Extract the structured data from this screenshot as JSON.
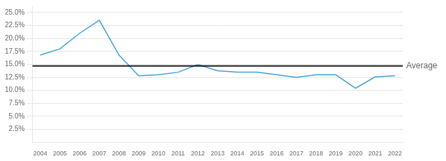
{
  "chart_data": {
    "type": "line",
    "x": [
      2004,
      2005,
      2006,
      2007,
      2008,
      2009,
      2010,
      2011,
      2012,
      2013,
      2014,
      2015,
      2016,
      2017,
      2018,
      2019,
      2020,
      2021,
      2022
    ],
    "series": [
      {
        "color": "#3AA0D8",
        "values": [
          0.168,
          0.18,
          0.21,
          0.235,
          0.168,
          0.128,
          0.13,
          0.135,
          0.15,
          0.138,
          0.135,
          0.135,
          0.13,
          0.125,
          0.13,
          0.13,
          0.104,
          0.126,
          0.128
        ]
      }
    ],
    "xlim": [
      2003.6,
      2022.4
    ],
    "xticks": [
      2004,
      2005,
      2006,
      2007,
      2008,
      2009,
      2010,
      2011,
      2012,
      2013,
      2014,
      2015,
      2016,
      2017,
      2018,
      2019,
      2020,
      2021,
      2022
    ],
    "ylim": [
      0.0,
      0.262
    ],
    "yticks": [
      {
        "value": 0.025,
        "label": "2.5%"
      },
      {
        "value": 0.05,
        "label": "5.0%"
      },
      {
        "value": 0.075,
        "label": "7.5%"
      },
      {
        "value": 0.1,
        "label": "10.0%"
      },
      {
        "value": 0.125,
        "label": "12.5%"
      },
      {
        "value": 0.15,
        "label": "15.0%"
      },
      {
        "value": 0.175,
        "label": "17.5%"
      },
      {
        "value": 0.2,
        "label": "20.0%"
      },
      {
        "value": 0.225,
        "label": "22.5%"
      },
      {
        "value": 0.25,
        "label": "25.0%"
      }
    ],
    "grid": "y",
    "annotations": [
      {
        "text": "Average",
        "y": 0.147,
        "color": "#000000"
      }
    ]
  }
}
